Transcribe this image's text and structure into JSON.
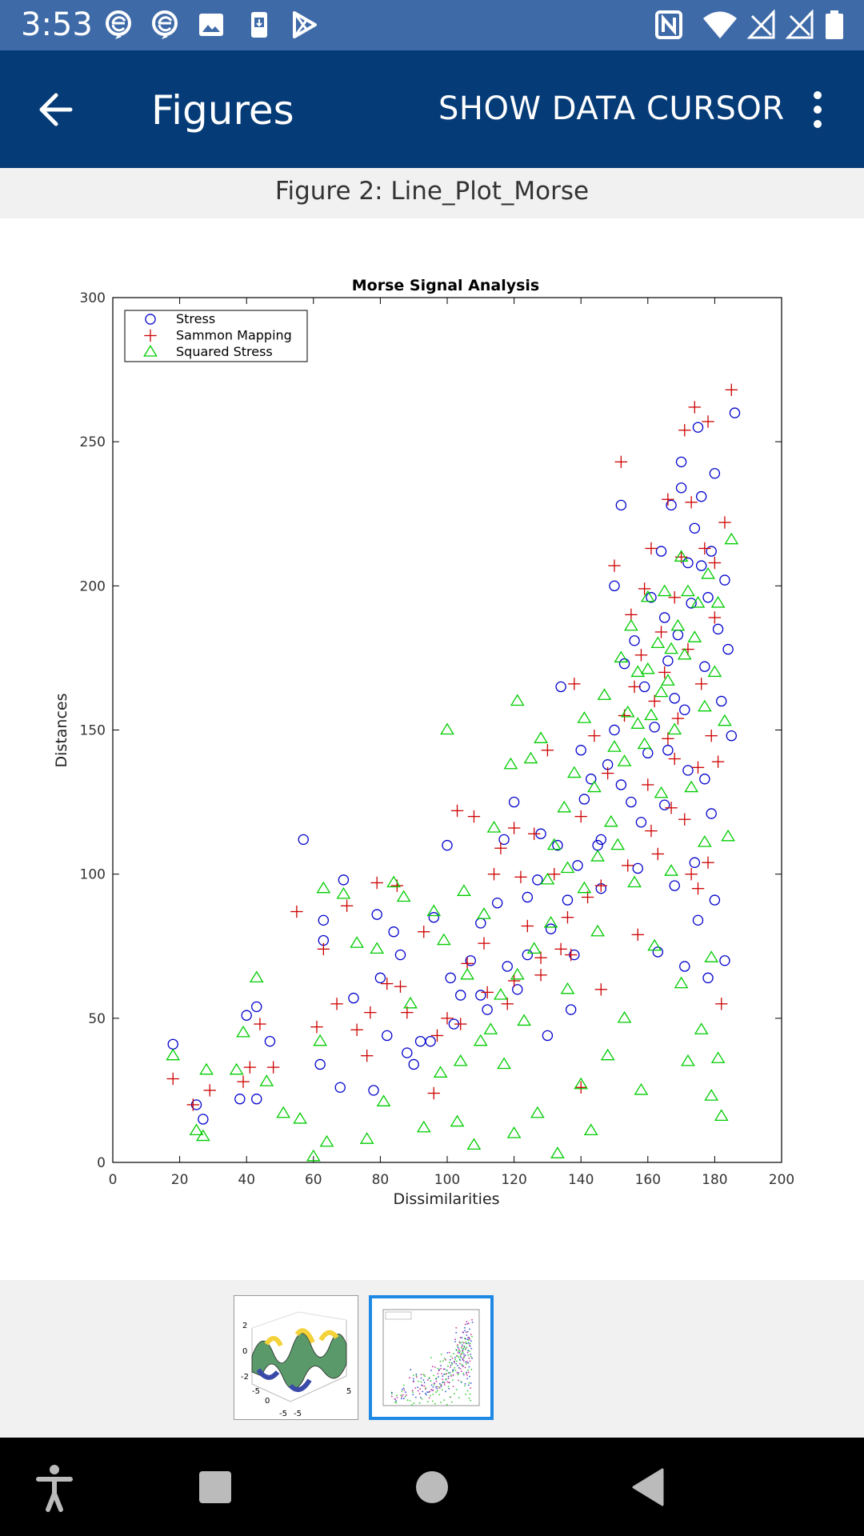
{
  "status_bar": {
    "time": "3:53",
    "left_icons": [
      "mail-e-icon",
      "mail-e-icon",
      "image-icon",
      "device-icon",
      "play-store-icon"
    ],
    "right_icons": [
      "nfc-icon",
      "wifi-icon",
      "signal-off-icon",
      "signal-off-icon",
      "battery-icon"
    ]
  },
  "app_bar": {
    "title": "Figures",
    "action_label": "SHOW DATA CURSOR",
    "background": "#053b77"
  },
  "figure": {
    "label": "Figure 2: Line_Plot_Morse"
  },
  "chart_data": {
    "type": "scatter",
    "title": "Morse Signal Analysis",
    "xlabel": "Dissimilarities",
    "ylabel": "Distances",
    "xlim": [
      0,
      200
    ],
    "ylim": [
      0,
      300
    ],
    "xticks": [
      0,
      20,
      40,
      60,
      80,
      100,
      120,
      140,
      160,
      180,
      200
    ],
    "yticks": [
      0,
      50,
      100,
      150,
      200,
      250,
      300
    ],
    "grid": false,
    "legend_position": "top-left",
    "series": [
      {
        "name": "Stress",
        "marker": "circle",
        "color": "#0000cc",
        "points": [
          [
            18,
            41
          ],
          [
            25,
            20
          ],
          [
            27,
            15
          ],
          [
            38,
            22
          ],
          [
            40,
            51
          ],
          [
            43,
            54
          ],
          [
            43,
            22
          ],
          [
            47,
            42
          ],
          [
            57,
            112
          ],
          [
            62,
            34
          ],
          [
            63,
            84
          ],
          [
            63,
            77
          ],
          [
            68,
            26
          ],
          [
            69,
            98
          ],
          [
            72,
            57
          ],
          [
            78,
            25
          ],
          [
            79,
            86
          ],
          [
            82,
            44
          ],
          [
            84,
            80
          ],
          [
            86,
            72
          ],
          [
            90,
            34
          ],
          [
            92,
            42
          ],
          [
            96,
            85
          ],
          [
            100,
            110
          ],
          [
            101,
            64
          ],
          [
            104,
            58
          ],
          [
            107,
            70
          ],
          [
            110,
            83
          ],
          [
            112,
            53
          ],
          [
            115,
            90
          ],
          [
            117,
            112
          ],
          [
            120,
            125
          ],
          [
            121,
            60
          ],
          [
            124,
            72
          ],
          [
            127,
            98
          ],
          [
            128,
            114
          ],
          [
            130,
            44
          ],
          [
            133,
            110
          ],
          [
            134,
            165
          ],
          [
            136,
            91
          ],
          [
            137,
            53
          ],
          [
            138,
            72
          ],
          [
            140,
            143
          ],
          [
            141,
            126
          ],
          [
            143,
            133
          ],
          [
            145,
            110
          ],
          [
            146,
            95
          ],
          [
            148,
            138
          ],
          [
            150,
            150
          ],
          [
            150,
            200
          ],
          [
            152,
            228
          ],
          [
            153,
            173
          ],
          [
            155,
            125
          ],
          [
            156,
            181
          ],
          [
            157,
            102
          ],
          [
            159,
            165
          ],
          [
            160,
            142
          ],
          [
            161,
            196
          ],
          [
            162,
            151
          ],
          [
            163,
            73
          ],
          [
            164,
            212
          ],
          [
            165,
            189
          ],
          [
            165,
            124
          ],
          [
            166,
            174
          ],
          [
            167,
            228
          ],
          [
            168,
            96
          ],
          [
            168,
            161
          ],
          [
            169,
            183
          ],
          [
            170,
            234
          ],
          [
            170,
            243
          ],
          [
            171,
            68
          ],
          [
            172,
            208
          ],
          [
            172,
            136
          ],
          [
            173,
            194
          ],
          [
            174,
            220
          ],
          [
            174,
            104
          ],
          [
            175,
            84
          ],
          [
            175,
            255
          ],
          [
            176,
            231
          ],
          [
            177,
            172
          ],
          [
            177,
            133
          ],
          [
            178,
            64
          ],
          [
            178,
            196
          ],
          [
            179,
            212
          ],
          [
            179,
            121
          ],
          [
            180,
            239
          ],
          [
            180,
            91
          ],
          [
            181,
            185
          ],
          [
            182,
            160
          ],
          [
            183,
            70
          ],
          [
            183,
            202
          ],
          [
            184,
            178
          ],
          [
            185,
            148
          ],
          [
            186,
            260
          ],
          [
            176,
            207
          ],
          [
            171,
            157
          ],
          [
            166,
            143
          ],
          [
            158,
            118
          ],
          [
            152,
            131
          ],
          [
            146,
            112
          ],
          [
            139,
            103
          ],
          [
            131,
            81
          ],
          [
            124,
            92
          ],
          [
            118,
            68
          ],
          [
            110,
            58
          ],
          [
            102,
            48
          ],
          [
            95,
            42
          ],
          [
            88,
            38
          ],
          [
            80,
            64
          ]
        ]
      },
      {
        "name": "Sammon Mapping",
        "marker": "plus",
        "color": "#cc0000",
        "points": [
          [
            18,
            29
          ],
          [
            24,
            20
          ],
          [
            29,
            25
          ],
          [
            39,
            28
          ],
          [
            41,
            33
          ],
          [
            44,
            48
          ],
          [
            48,
            33
          ],
          [
            55,
            87
          ],
          [
            61,
            47
          ],
          [
            63,
            74
          ],
          [
            67,
            55
          ],
          [
            70,
            89
          ],
          [
            73,
            46
          ],
          [
            76,
            37
          ],
          [
            79,
            97
          ],
          [
            82,
            62
          ],
          [
            85,
            96
          ],
          [
            88,
            52
          ],
          [
            93,
            80
          ],
          [
            97,
            44
          ],
          [
            100,
            50
          ],
          [
            103,
            122
          ],
          [
            106,
            69
          ],
          [
            108,
            120
          ],
          [
            111,
            76
          ],
          [
            114,
            100
          ],
          [
            116,
            109
          ],
          [
            118,
            55
          ],
          [
            120,
            116
          ],
          [
            122,
            99
          ],
          [
            124,
            82
          ],
          [
            126,
            114
          ],
          [
            128,
            65
          ],
          [
            130,
            143
          ],
          [
            132,
            100
          ],
          [
            134,
            74
          ],
          [
            136,
            85
          ],
          [
            138,
            166
          ],
          [
            140,
            120
          ],
          [
            142,
            92
          ],
          [
            144,
            148
          ],
          [
            146,
            60
          ],
          [
            148,
            135
          ],
          [
            150,
            207
          ],
          [
            152,
            243
          ],
          [
            153,
            155
          ],
          [
            155,
            190
          ],
          [
            156,
            165
          ],
          [
            157,
            79
          ],
          [
            158,
            176
          ],
          [
            159,
            199
          ],
          [
            160,
            131
          ],
          [
            161,
            213
          ],
          [
            162,
            160
          ],
          [
            163,
            107
          ],
          [
            164,
            184
          ],
          [
            165,
            170
          ],
          [
            166,
            230
          ],
          [
            166,
            147
          ],
          [
            167,
            123
          ],
          [
            168,
            196
          ],
          [
            169,
            154
          ],
          [
            170,
            210
          ],
          [
            171,
            254
          ],
          [
            171,
            119
          ],
          [
            172,
            178
          ],
          [
            173,
            229
          ],
          [
            173,
            100
          ],
          [
            174,
            262
          ],
          [
            175,
            137
          ],
          [
            176,
            166
          ],
          [
            177,
            213
          ],
          [
            178,
            257
          ],
          [
            178,
            104
          ],
          [
            179,
            148
          ],
          [
            180,
            208
          ],
          [
            180,
            189
          ],
          [
            181,
            139
          ],
          [
            182,
            55
          ],
          [
            183,
            222
          ],
          [
            185,
            268
          ],
          [
            175,
            95
          ],
          [
            168,
            140
          ],
          [
            161,
            115
          ],
          [
            154,
            103
          ],
          [
            146,
            96
          ],
          [
            137,
            72
          ],
          [
            128,
            71
          ],
          [
            120,
            63
          ],
          [
            112,
            59
          ],
          [
            104,
            48
          ],
          [
            96,
            24
          ],
          [
            86,
            61
          ],
          [
            77,
            52
          ],
          [
            140,
            26
          ]
        ]
      },
      {
        "name": "Squared Stress",
        "marker": "triangle",
        "color": "#00cc00",
        "points": [
          [
            18,
            37
          ],
          [
            25,
            11
          ],
          [
            27,
            9
          ],
          [
            28,
            32
          ],
          [
            37,
            32
          ],
          [
            39,
            45
          ],
          [
            43,
            64
          ],
          [
            46,
            28
          ],
          [
            51,
            17
          ],
          [
            56,
            15
          ],
          [
            60,
            2
          ],
          [
            62,
            42
          ],
          [
            63,
            95
          ],
          [
            64,
            7
          ],
          [
            69,
            93
          ],
          [
            73,
            76
          ],
          [
            76,
            8
          ],
          [
            79,
            74
          ],
          [
            81,
            21
          ],
          [
            84,
            97
          ],
          [
            87,
            92
          ],
          [
            89,
            55
          ],
          [
            93,
            12
          ],
          [
            96,
            87
          ],
          [
            99,
            77
          ],
          [
            100,
            150
          ],
          [
            103,
            14
          ],
          [
            105,
            94
          ],
          [
            106,
            65
          ],
          [
            108,
            6
          ],
          [
            111,
            86
          ],
          [
            113,
            46
          ],
          [
            114,
            116
          ],
          [
            117,
            34
          ],
          [
            119,
            138
          ],
          [
            120,
            10
          ],
          [
            121,
            160
          ],
          [
            123,
            49
          ],
          [
            125,
            140
          ],
          [
            127,
            17
          ],
          [
            128,
            147
          ],
          [
            130,
            98
          ],
          [
            132,
            110
          ],
          [
            133,
            3
          ],
          [
            135,
            123
          ],
          [
            136,
            60
          ],
          [
            138,
            135
          ],
          [
            140,
            27
          ],
          [
            141,
            154
          ],
          [
            143,
            11
          ],
          [
            144,
            130
          ],
          [
            145,
            80
          ],
          [
            147,
            162
          ],
          [
            148,
            37
          ],
          [
            150,
            144
          ],
          [
            151,
            110
          ],
          [
            152,
            175
          ],
          [
            153,
            50
          ],
          [
            154,
            156
          ],
          [
            155,
            186
          ],
          [
            156,
            97
          ],
          [
            157,
            170
          ],
          [
            158,
            25
          ],
          [
            159,
            145
          ],
          [
            160,
            196
          ],
          [
            161,
            155
          ],
          [
            162,
            75
          ],
          [
            163,
            180
          ],
          [
            164,
            128
          ],
          [
            165,
            198
          ],
          [
            166,
            167
          ],
          [
            167,
            101
          ],
          [
            168,
            150
          ],
          [
            169,
            186
          ],
          [
            170,
            62
          ],
          [
            170,
            210
          ],
          [
            171,
            176
          ],
          [
            172,
            35
          ],
          [
            172,
            198
          ],
          [
            173,
            130
          ],
          [
            174,
            182
          ],
          [
            175,
            194
          ],
          [
            176,
            46
          ],
          [
            177,
            111
          ],
          [
            177,
            158
          ],
          [
            178,
            204
          ],
          [
            179,
            23
          ],
          [
            179,
            71
          ],
          [
            180,
            170
          ],
          [
            181,
            36
          ],
          [
            181,
            194
          ],
          [
            182,
            16
          ],
          [
            183,
            153
          ],
          [
            184,
            113
          ],
          [
            185,
            216
          ],
          [
            167,
            178
          ],
          [
            164,
            163
          ],
          [
            160,
            171
          ],
          [
            157,
            152
          ],
          [
            153,
            139
          ],
          [
            149,
            118
          ],
          [
            145,
            106
          ],
          [
            141,
            95
          ],
          [
            136,
            102
          ],
          [
            131,
            83
          ],
          [
            126,
            74
          ],
          [
            121,
            65
          ],
          [
            116,
            58
          ],
          [
            110,
            42
          ],
          [
            104,
            35
          ],
          [
            98,
            31
          ]
        ]
      }
    ]
  },
  "thumbnails": [
    {
      "name": "figure-1-surface-plot",
      "selected": false
    },
    {
      "name": "figure-2-scatter-plot",
      "selected": true
    }
  ],
  "thumb1_ticks": {
    "z_top": "2",
    "z_mid": "0",
    "z_bot": "-2",
    "x_left": "-5",
    "x_mid": "0",
    "y_right": "5",
    "y_bottom": "-5",
    "x_bottom": "-5"
  },
  "nav_bar": {
    "buttons": [
      "accessibility-icon",
      "recents-icon",
      "home-icon",
      "back-icon"
    ]
  }
}
